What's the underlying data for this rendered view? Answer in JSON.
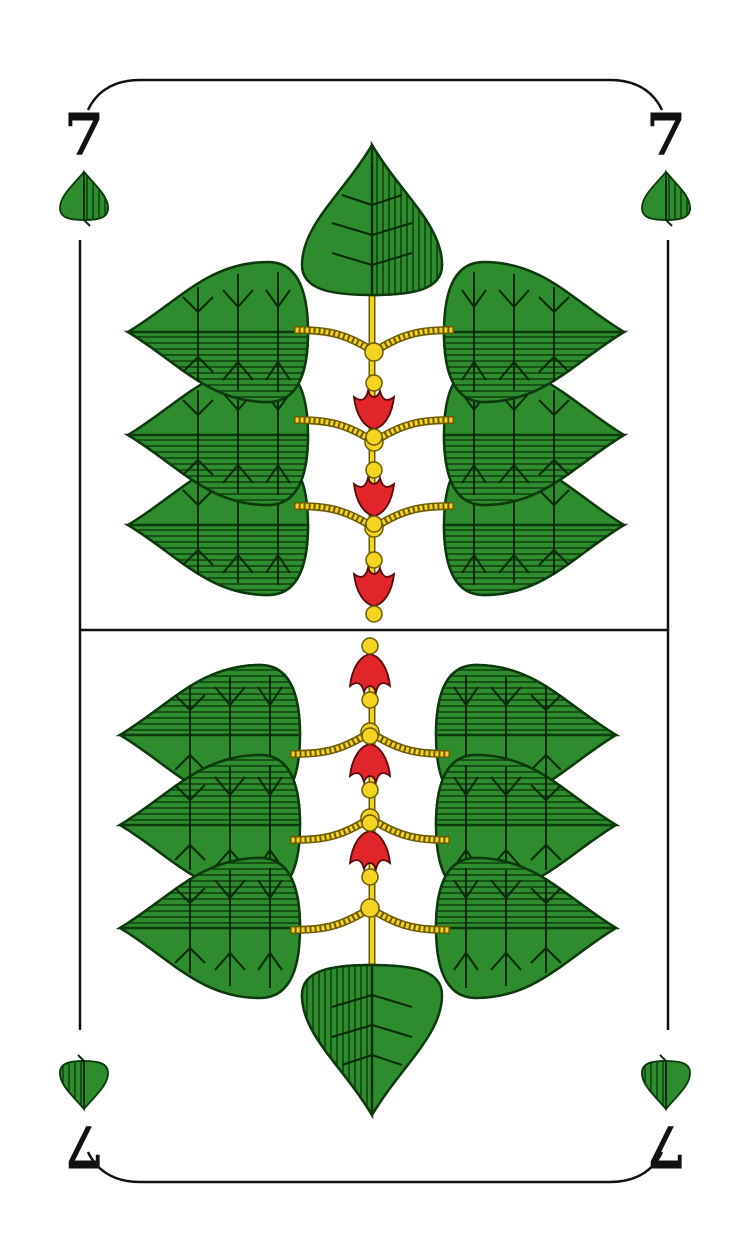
{
  "card": {
    "rank": "7",
    "suit": "leaves",
    "suit_icon": "leaf-suit-icon",
    "pip_count": 7,
    "colors": {
      "leaf_green": "#2e8b2e",
      "leaf_stroke": "#0d3a0d",
      "vein": "#0b2a0b",
      "stem_yellow": "#f2d421",
      "flower_red": "#e0262a",
      "frame_line": "#111111",
      "background": "#ffffff"
    }
  }
}
